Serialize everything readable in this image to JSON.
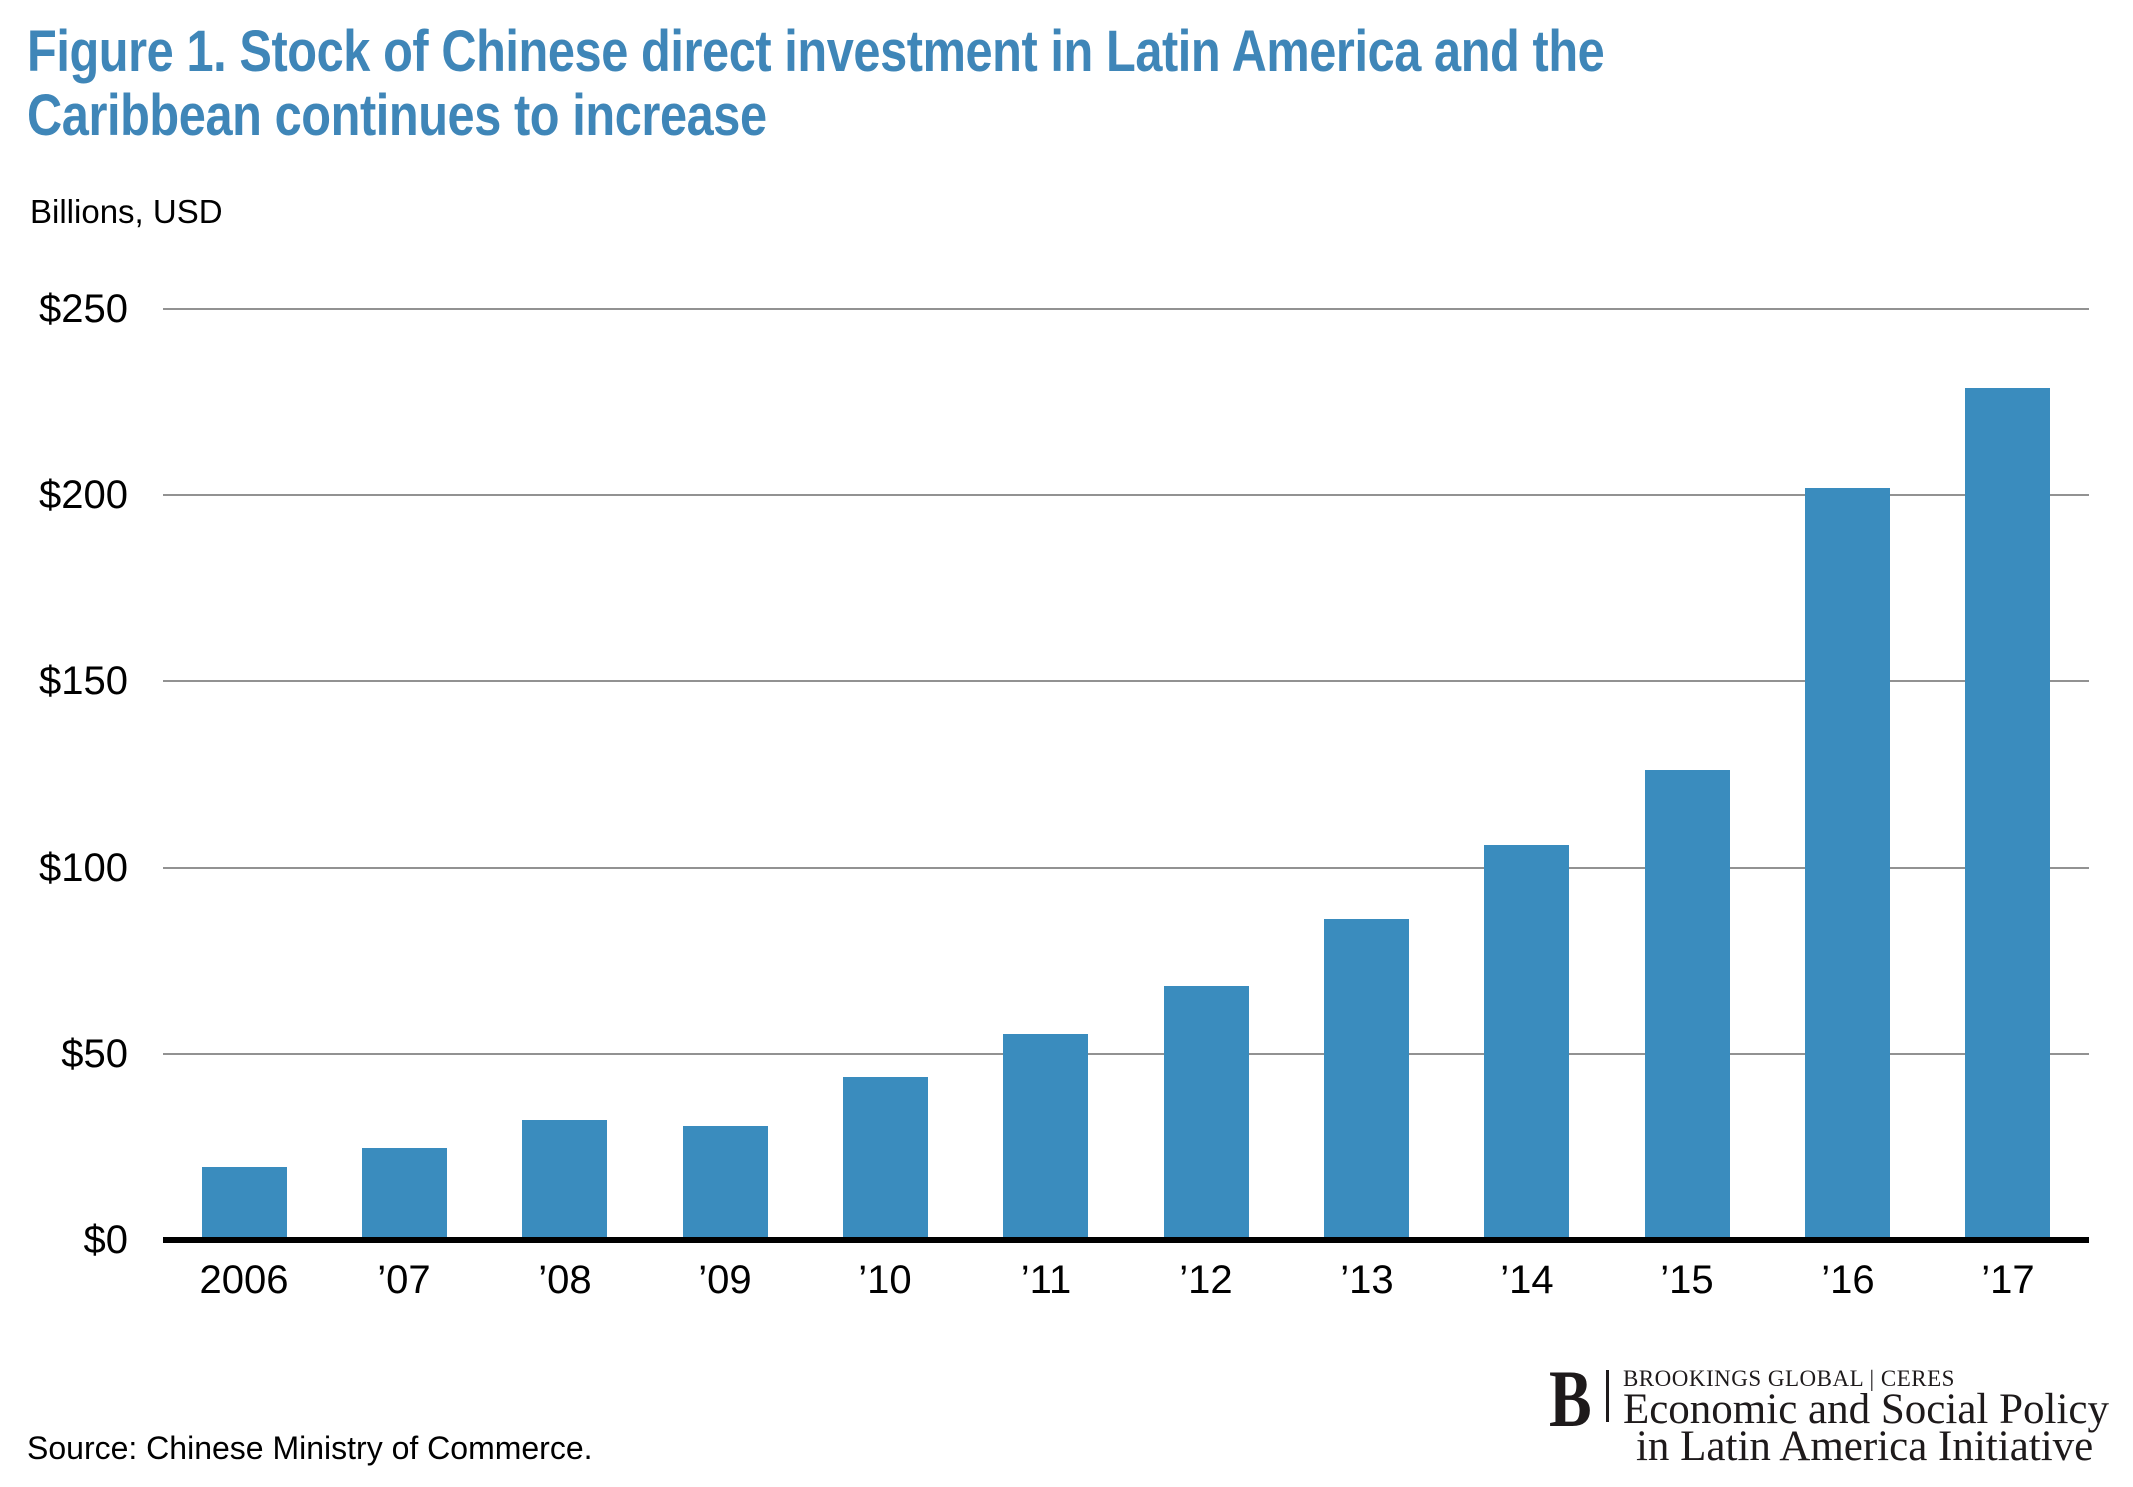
{
  "title": {
    "line1": "Figure 1. Stock of Chinese direct investment in Latin America and the",
    "line2": "Caribbean continues to increase"
  },
  "chart_data": {
    "type": "bar",
    "title": "Figure 1. Stock of Chinese direct investment in Latin America and the Caribbean continues to increase",
    "unit_label": "Billions, USD",
    "xlabel": "",
    "ylabel": "Billions, USD",
    "categories": [
      "2006",
      "’07",
      "’08",
      "’09",
      "’10",
      "’11",
      "’12",
      "’13",
      "’14",
      "’15",
      "’16",
      "’17"
    ],
    "values": [
      19.7,
      24.7,
      32.2,
      30.6,
      43.9,
      55.2,
      68.2,
      86.1,
      106.1,
      126.3,
      201.9,
      228.8
    ],
    "series_name": "Stock of Chinese direct investment in Latin America and the Caribbean",
    "ylim": [
      0,
      250
    ],
    "y_ticks": [
      0,
      50,
      100,
      150,
      200,
      250
    ],
    "y_tick_labels": [
      "$0",
      "$50",
      "$100",
      "$150",
      "$200",
      "$250"
    ],
    "grid": true,
    "legend": "none",
    "bar_color": "#3A8CBE",
    "gridline_color": "#929292",
    "axis_color": "#000000"
  },
  "theme": {
    "title_color": "#3F86B8",
    "text_color": "#000000"
  },
  "footer": {
    "source": "Source: Chinese Ministry of Commerce."
  },
  "logo": {
    "letter": "B",
    "top_line": "BROOKINGS GLOBAL | CERES",
    "line2": "Economic and Social Policy",
    "line3": "in Latin America Initiative"
  }
}
